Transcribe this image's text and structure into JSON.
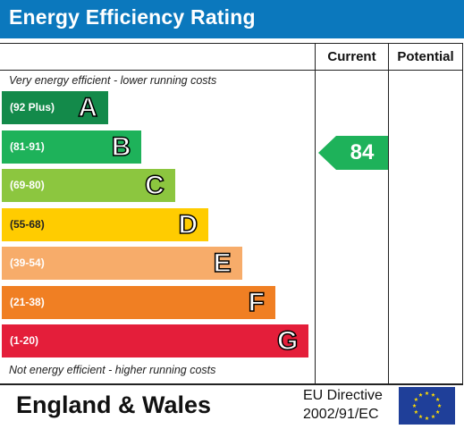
{
  "title": "Energy Efficiency Rating",
  "columns": {
    "current": "Current",
    "potential": "Potential"
  },
  "top_note": "Very energy efficient - lower running costs",
  "bottom_note": "Not energy efficient - higher running costs",
  "bands": [
    {
      "letter": "A",
      "range": "(92 Plus)",
      "color": "#138a4a"
    },
    {
      "letter": "B",
      "range": "(81-91)",
      "color": "#1eb25a"
    },
    {
      "letter": "C",
      "range": "(69-80)",
      "color": "#8cc63f"
    },
    {
      "letter": "D",
      "range": "(55-68)",
      "color": "#ffcc00"
    },
    {
      "letter": "E",
      "range": "(39-54)",
      "color": "#f7ac6a"
    },
    {
      "letter": "F",
      "range": "(21-38)",
      "color": "#f07f23"
    },
    {
      "letter": "G",
      "range": "(1-20)",
      "color": "#e41e3a"
    }
  ],
  "current_rating": {
    "value": "84",
    "band": "B",
    "color": "#1eb25a"
  },
  "potential_rating": null,
  "footer": {
    "region": "England & Wales",
    "directive_line1": "EU Directive",
    "directive_line2": "2002/91/EC",
    "flag_icon": "eu-flag-icon"
  }
}
